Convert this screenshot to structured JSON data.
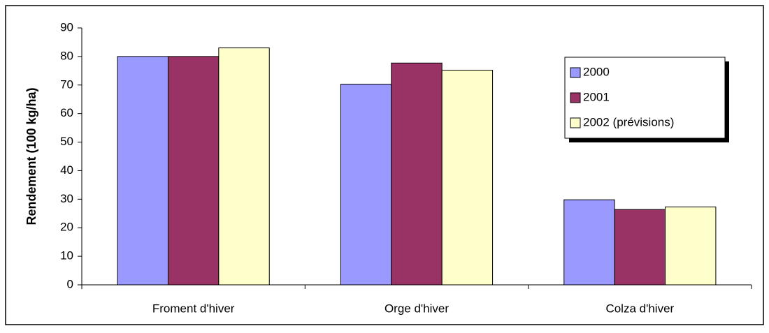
{
  "chart_data": {
    "type": "bar",
    "ylabel": "Rendement (100 kg/ha)",
    "categories": [
      "Froment d'hiver",
      "Orge d'hiver",
      "Colza d'hiver"
    ],
    "series": [
      {
        "name": "2000",
        "color": "#9999ff",
        "values": [
          80,
          70.3,
          29.8
        ]
      },
      {
        "name": "2001",
        "color": "#993366",
        "values": [
          80,
          77.7,
          26.4
        ]
      },
      {
        "name": "2002 (prévisions)",
        "color": "#ffffcc",
        "values": [
          83,
          75.2,
          27.3
        ]
      }
    ],
    "ylim": [
      0,
      90
    ],
    "yticks": [
      0,
      10,
      20,
      30,
      40,
      50,
      60,
      70,
      80,
      90
    ],
    "grid": false,
    "legend": "upper right"
  }
}
